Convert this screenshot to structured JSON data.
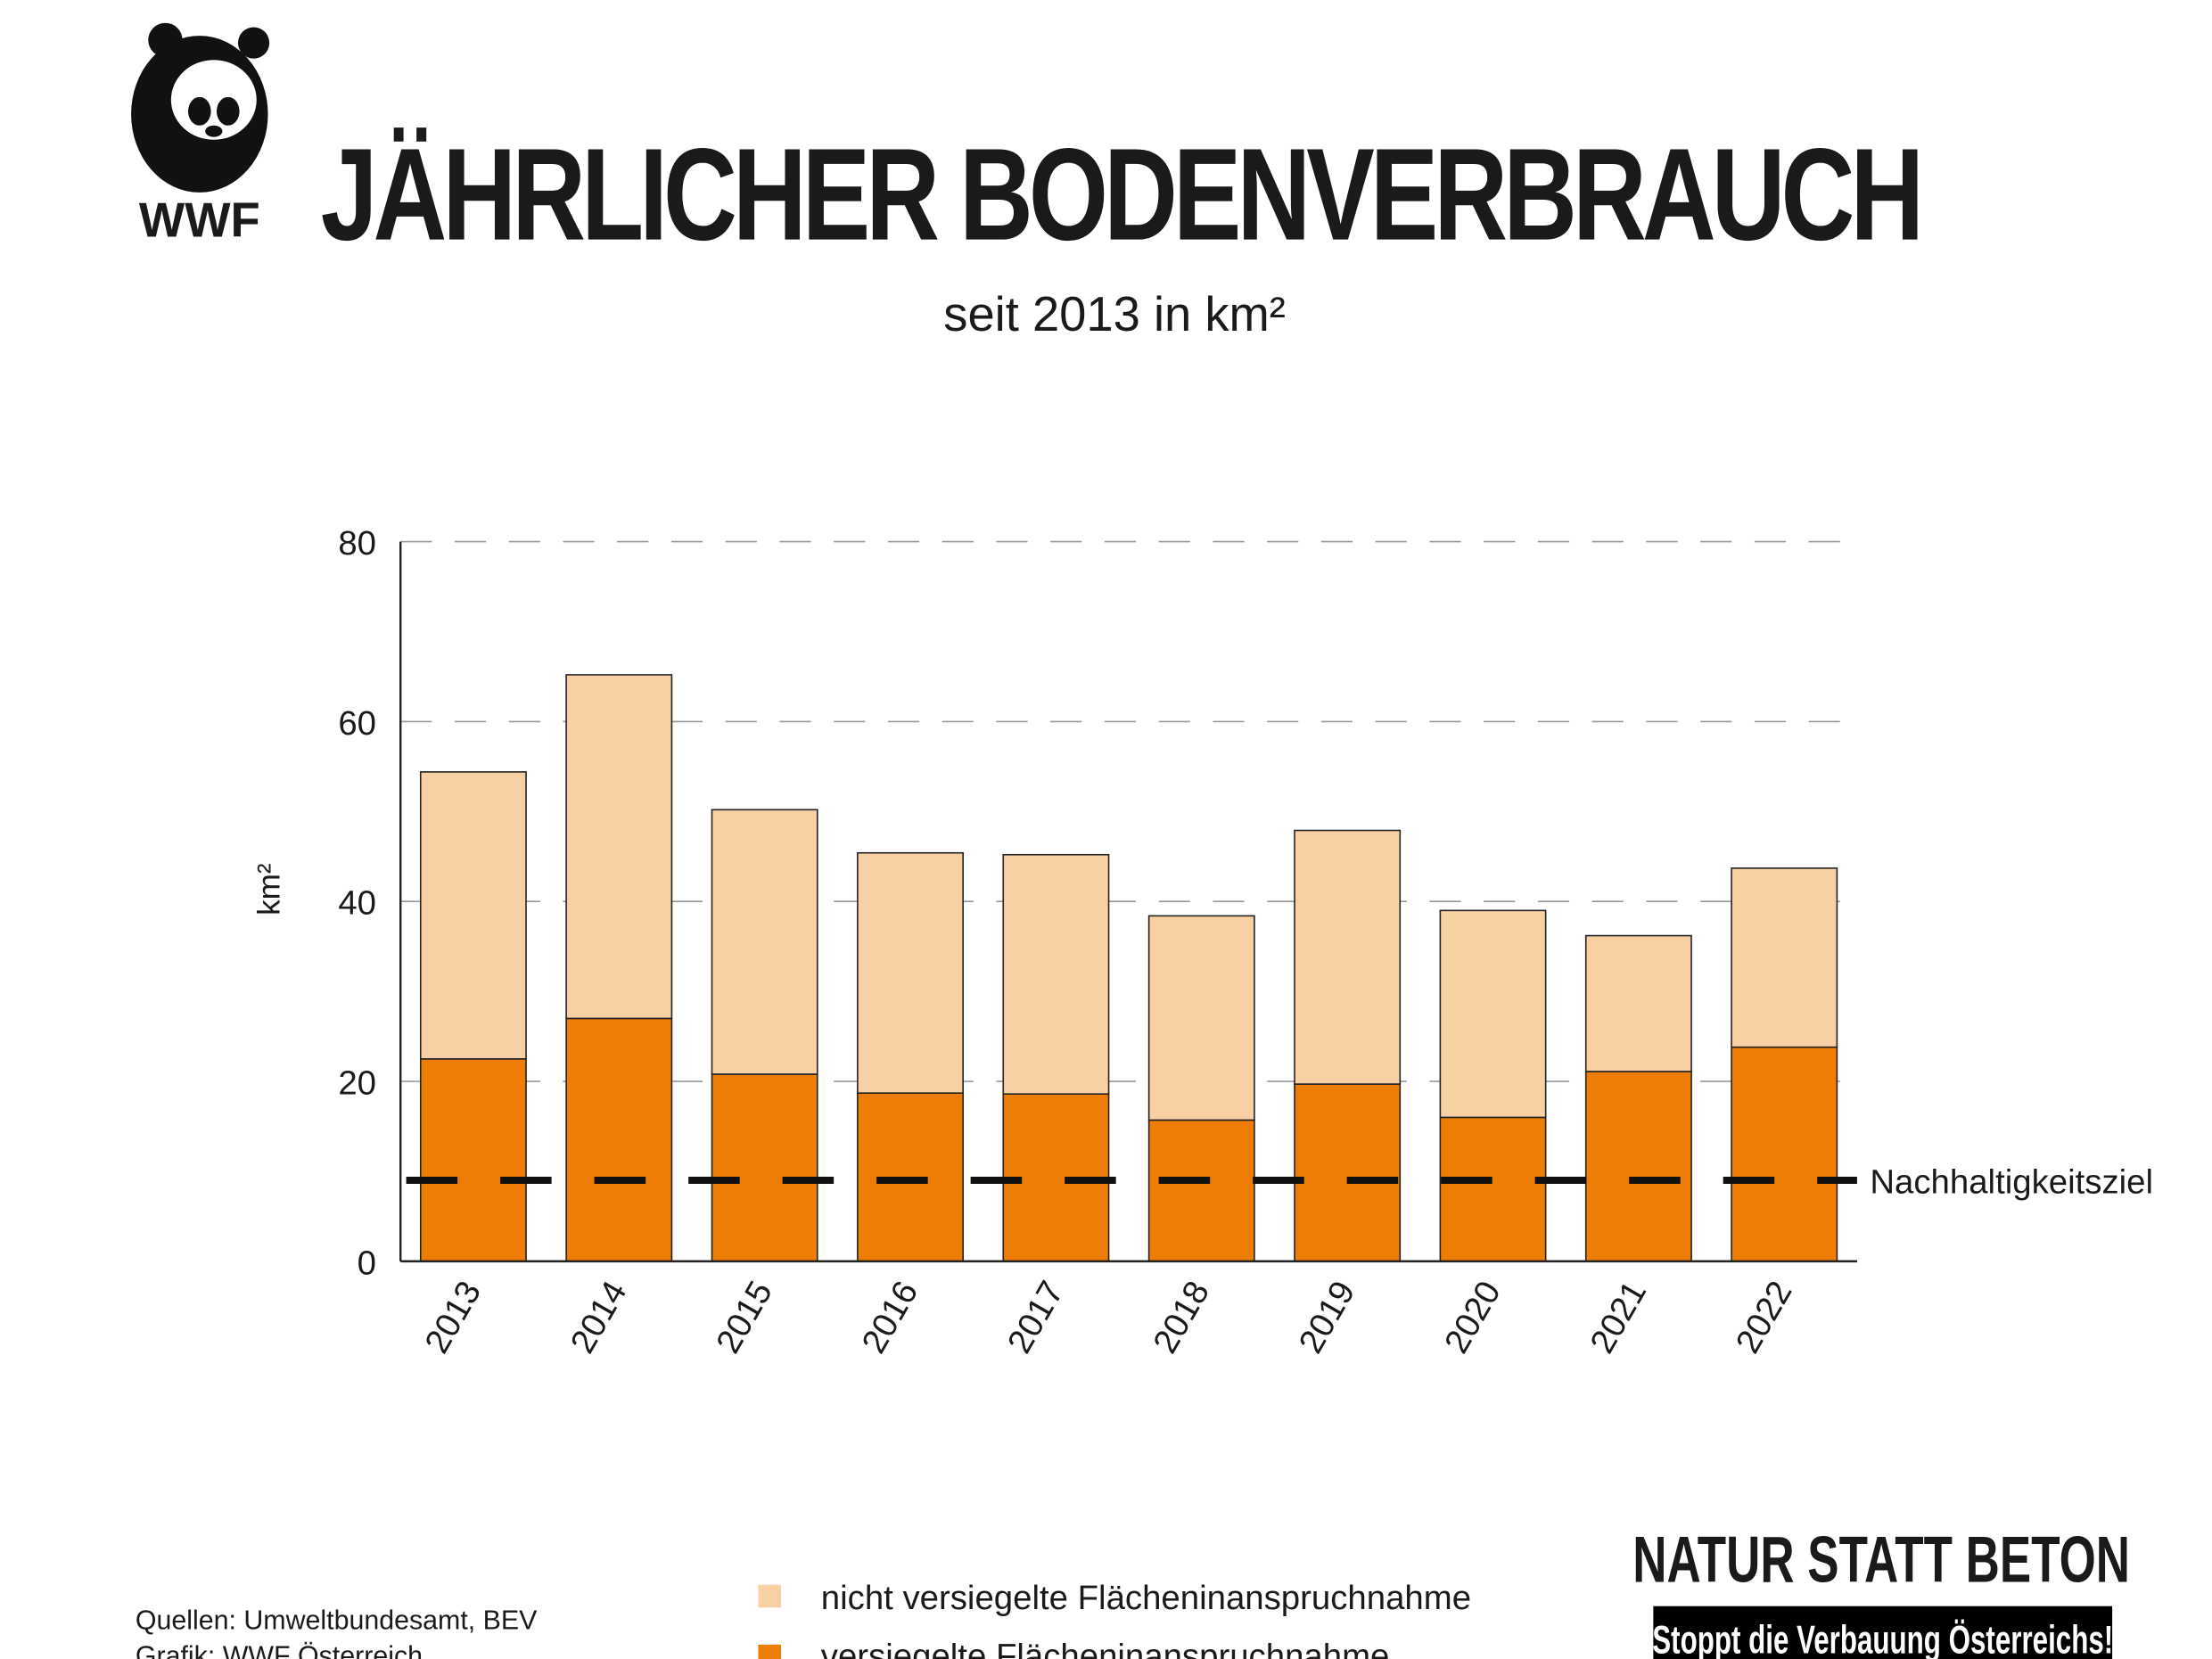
{
  "logo": {
    "text": "WWF"
  },
  "chart_data": {
    "type": "bar",
    "stacked": true,
    "title": "JÄHRLICHER BODENVERBRAUCH",
    "subtitle": "seit 2013 in km²",
    "xlabel": "",
    "ylabel": "km²",
    "ylim": [
      0,
      80
    ],
    "yticks": [
      0,
      20,
      40,
      60,
      80
    ],
    "grid": true,
    "categories": [
      "2013",
      "2014",
      "2015",
      "2016",
      "2017",
      "2018",
      "2019",
      "2020",
      "2021",
      "2022"
    ],
    "series": [
      {
        "name": "versiegelte Flächeninanspruchnahme",
        "color": "#ed7d05",
        "values": [
          22.5,
          27.0,
          20.8,
          18.7,
          18.6,
          15.7,
          19.7,
          16.0,
          21.1,
          23.8
        ]
      },
      {
        "name": "nicht versiegelte Flächeninanspruchnahme",
        "color": "#f9cfa4",
        "values": [
          31.9,
          38.2,
          29.4,
          26.7,
          26.6,
          22.7,
          28.2,
          23.0,
          15.1,
          19.9
        ]
      }
    ],
    "totals": [
      54.4,
      65.2,
      50.2,
      45.4,
      45.2,
      38.4,
      47.9,
      39.0,
      36.2,
      43.7
    ],
    "target_line": {
      "label": "Nachhaltigkeitsziel",
      "value": 9
    },
    "legend_placement": "bottom-center"
  },
  "footer": {
    "sources": "Quellen: Umweltbundesamt, BEV",
    "graphic": "Grafik: WWF Österreich",
    "campaign_title": "NATUR STATT BETON",
    "campaign_subtitle": "Stoppt die Verbauung Österreichs!"
  }
}
